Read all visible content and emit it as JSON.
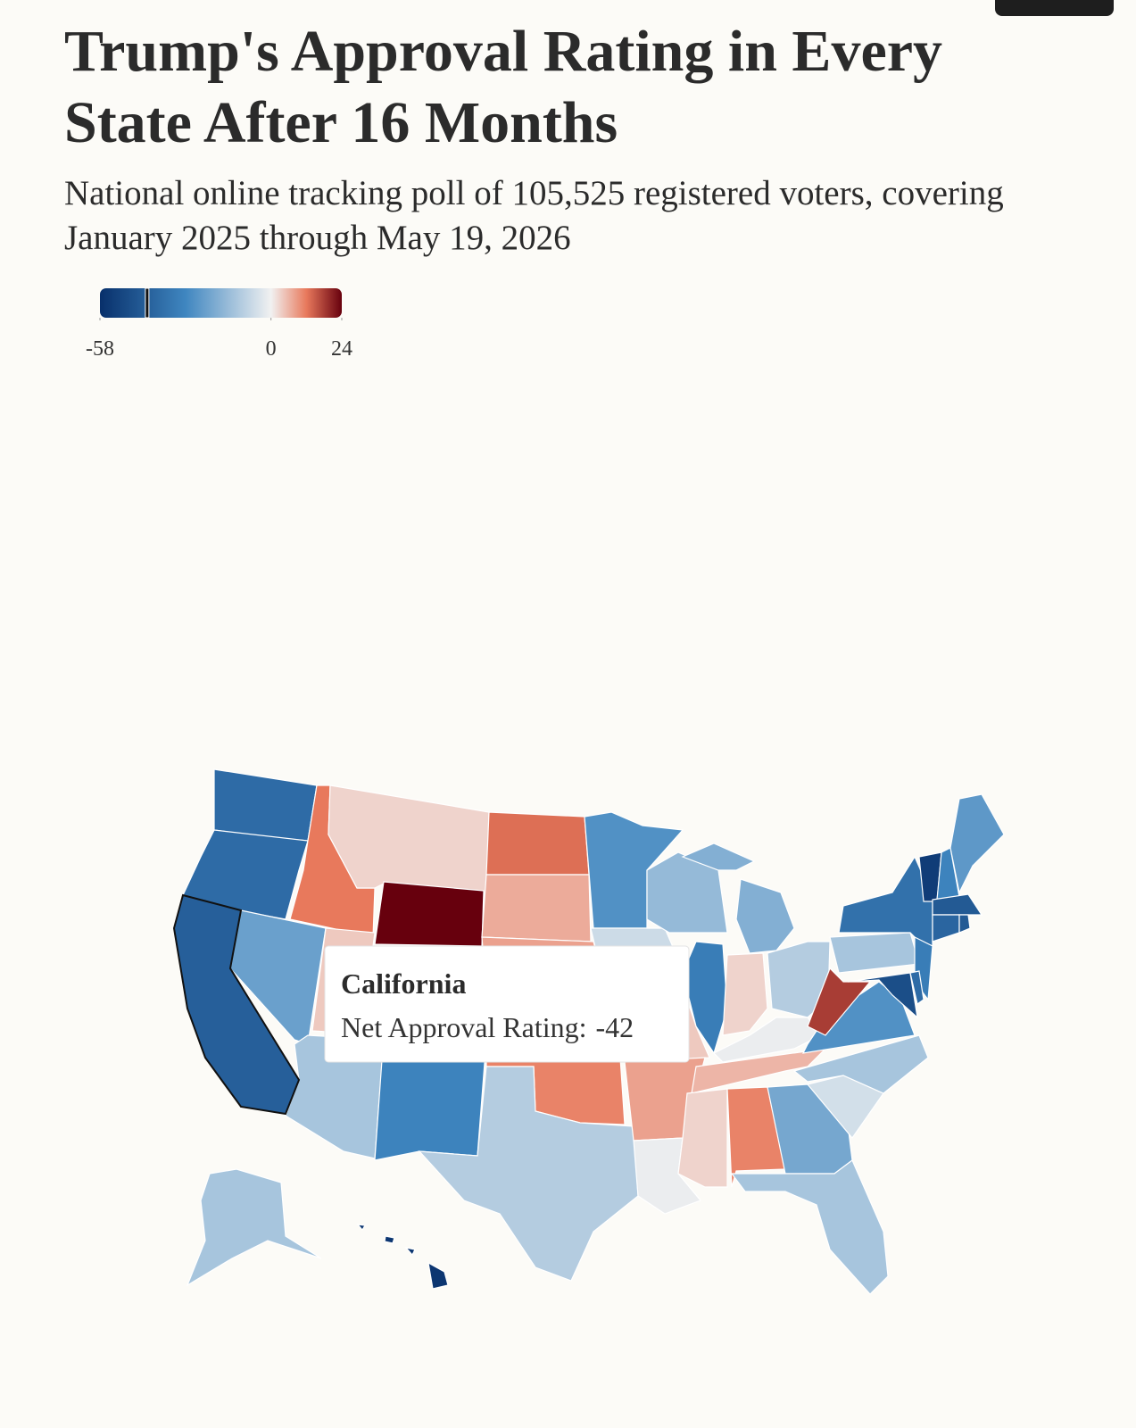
{
  "chart_data": {
    "type": "choropleth",
    "title": "Trump's Approval Rating in Every State After 16 Months",
    "subtitle": "National online tracking poll of 105,525 registered voters, covering January 2025 through May 19, 2026",
    "zlim": [
      -58,
      24
    ],
    "zmid": 0,
    "zticks": [
      -58,
      0,
      24
    ],
    "colors": [
      "#08306b",
      "#3f86c0",
      "#f1f1f1",
      "#e8795c",
      "#67000d"
    ],
    "values": [
      -38,
      -38,
      -42,
      12,
      -22,
      3,
      24,
      4,
      -12,
      -10,
      -30,
      13,
      7,
      8,
      8,
      11,
      -10,
      -26,
      -6,
      4,
      8,
      -1,
      -15,
      -32,
      -18,
      3,
      -10,
      -1,
      6,
      3,
      11,
      -20,
      -12,
      -5,
      -12,
      -26,
      18,
      -12,
      -36,
      -32,
      -48,
      -38,
      -54,
      -30,
      -24,
      -44,
      -40,
      -44,
      -12,
      -56
    ],
    "tooltip": {
      "name": "California",
      "label": "Net Approval Rating:",
      "value": -42
    }
  }
}
